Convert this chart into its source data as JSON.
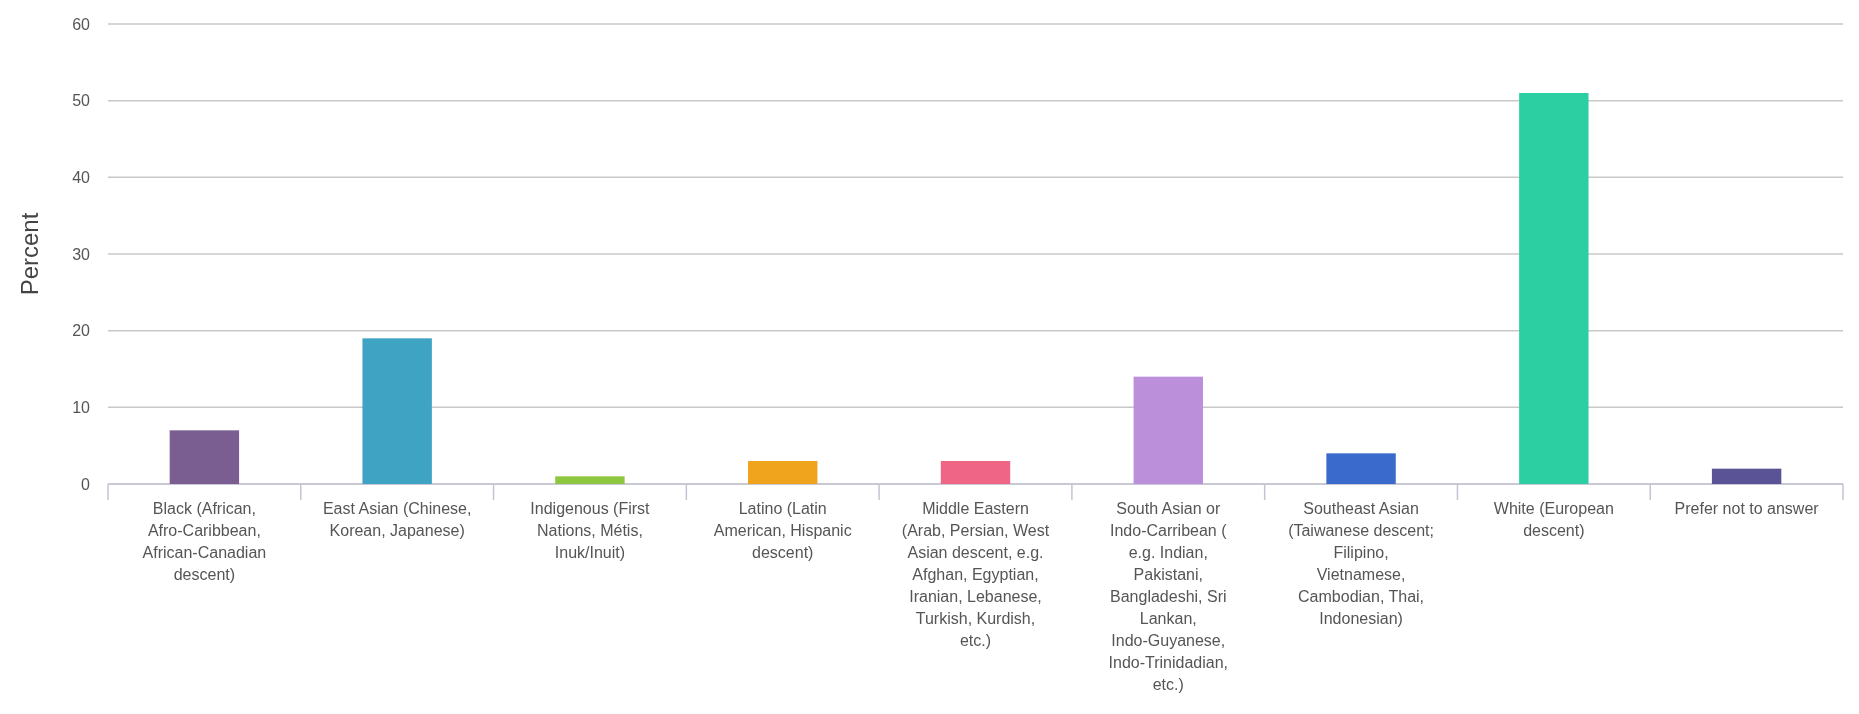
{
  "chart_data": {
    "type": "bar",
    "ylabel": "Percent",
    "categories": [
      "Black (African, Afro-Caribbean, African-Canadian descent)",
      "East Asian (Chinese, Korean, Japanese)",
      "Indigenous (First Nations, Métis, Inuk/Inuit)",
      "Latino (Latin American, Hispanic descent)",
      "Middle Eastern (Arab, Persian, West Asian descent, e.g. Afghan, Egyptian, Iranian, Lebanese, Turkish, Kurdish, etc.)",
      "South Asian or Indo-Carribean ( e.g. Indian, Pakistani, Bangladeshi, Sri Lankan, Indo-Guyanese, Indo-Trinidadian, etc.)",
      "Southeast Asian (Taiwanese descent; Filipino, Vietnamese, Cambodian, Thai, Indonesian)",
      "White (European descent)",
      "Prefer not to answer"
    ],
    "values": [
      7,
      19,
      1,
      3,
      3,
      14,
      4,
      51,
      2
    ],
    "colors": [
      "#7b5e91",
      "#3fa3c4",
      "#8dc63f",
      "#f0a31d",
      "#ef6586",
      "#bb8fd9",
      "#3a6bcc",
      "#2ccfa1",
      "#5a5497"
    ],
    "ylim": [
      0,
      60
    ],
    "yticks": [
      0,
      10,
      20,
      30,
      40,
      50,
      60
    ],
    "grid": "y"
  }
}
